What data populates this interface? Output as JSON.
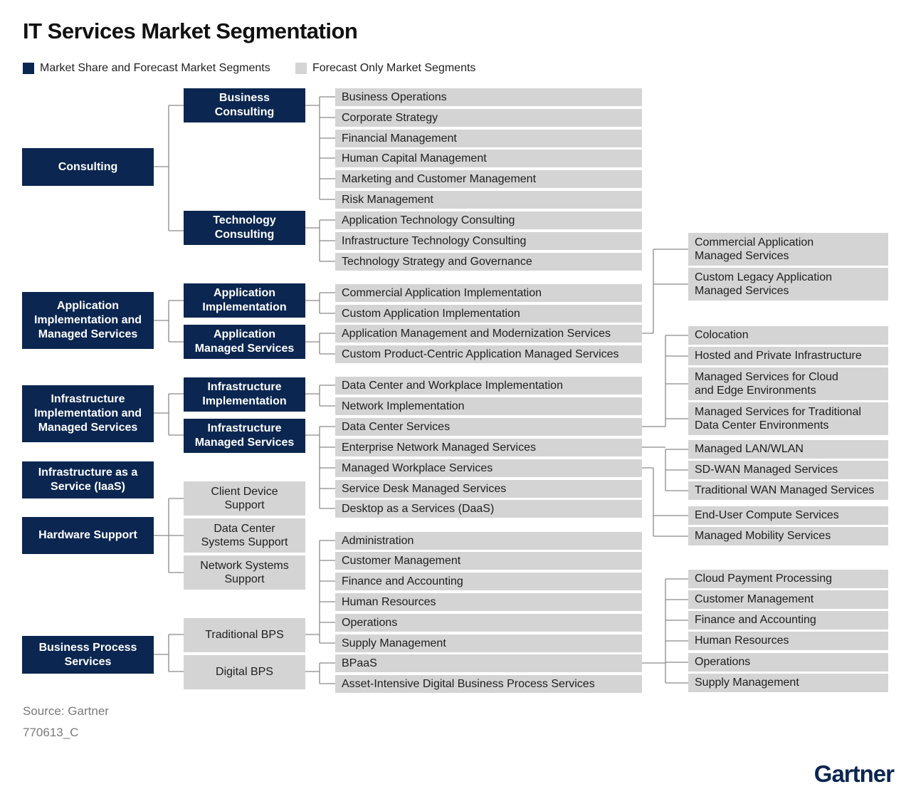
{
  "title": "IT Services Market Segmentation",
  "legend": [
    {
      "label": "Market Share and Forecast Market Segments",
      "color": "#0b2650"
    },
    {
      "label": "Forecast Only Market Segments",
      "color": "#d4d4d4"
    }
  ],
  "segments": {
    "consulting": "Consulting",
    "app_impl_managed": "Application\nImplementation and\nManaged Services",
    "infra_impl_managed": "Infrastructure\nImplementation and\nManaged Services",
    "iaas": "Infrastructure as a\nService (IaaS)",
    "hardware_support": "Hardware Support",
    "bps": "Business Process\nServices"
  },
  "subsegments": {
    "business_consulting": "Business\nConsulting",
    "technology_consulting": "Technology\nConsulting",
    "application_implementation": "Application\nImplementation",
    "application_managed_services": "Application\nManaged Services",
    "infrastructure_implementation": "Infrastructure\nImplementation",
    "infrastructure_managed_services": "Infrastructure\nManaged Services",
    "client_device_support": "Client Device\nSupport",
    "data_center_systems_support": "Data Center\nSystems Support",
    "network_systems_support": "Network Systems\nSupport",
    "traditional_bps": "Traditional BPS",
    "digital_bps": "Digital BPS"
  },
  "items": {
    "business_operations": "Business Operations",
    "corporate_strategy": "Corporate Strategy",
    "financial_management": "Financial Management",
    "human_capital_management": "Human Capital Management",
    "marketing_customer_management": "Marketing and Customer Management",
    "risk_management": "Risk Management",
    "app_tech_consulting": "Application Technology Consulting",
    "infra_tech_consulting": "Infrastructure Technology Consulting",
    "tech_strategy_governance": "Technology Strategy and Governance",
    "commercial_app_impl": "Commercial Application Implementation",
    "custom_app_impl": "Custom Application Implementation",
    "app_mgmt_modernization": "Application Management and Modernization Services",
    "custom_product_centric": "Custom Product-Centric Application Managed Services",
    "dc_workplace_impl": "Data Center and Workplace Implementation",
    "network_impl": "Network Implementation",
    "data_center_services": "Data Center Services",
    "enterprise_network_managed": "Enterprise Network Managed Services",
    "managed_workplace": "Managed Workplace Services",
    "service_desk_managed": "Service Desk Managed Services",
    "desktop_as_service": "Desktop as a Services (DaaS)",
    "administration": "Administration",
    "customer_management": "Customer Management",
    "finance_accounting": "Finance and Accounting",
    "human_resources": "Human Resources",
    "operations": "Operations",
    "supply_management": "Supply Management",
    "bpaas": "BPaaS",
    "asset_intensive_digital_bps": "Asset-Intensive Digital Business Process Services"
  },
  "detail": {
    "commercial_app_managed": "Commercial Application\nManaged Services",
    "custom_legacy_app_managed": "Custom Legacy Application\nManaged Services",
    "colocation": "Colocation",
    "hosted_private_infra": "Hosted and Private Infrastructure",
    "managed_cloud_edge": "Managed Services for Cloud\nand Edge Environments",
    "managed_traditional_dc": "Managed Services for Traditional\nData Center Environments",
    "managed_lan_wlan": "Managed LAN/WLAN",
    "sdwan_managed": "SD-WAN Managed Services",
    "traditional_wan_managed": "Traditional WAN Managed Services",
    "end_user_compute": "End-User Compute Services",
    "managed_mobility": "Managed Mobility Services",
    "cloud_payment_processing": "Cloud Payment Processing",
    "customer_management": "Customer Management",
    "finance_accounting": "Finance and Accounting",
    "human_resources": "Human Resources",
    "operations": "Operations",
    "supply_management": "Supply Management"
  },
  "source": "Source: Gartner",
  "code": "770613_C",
  "logo_text": "Gartner"
}
